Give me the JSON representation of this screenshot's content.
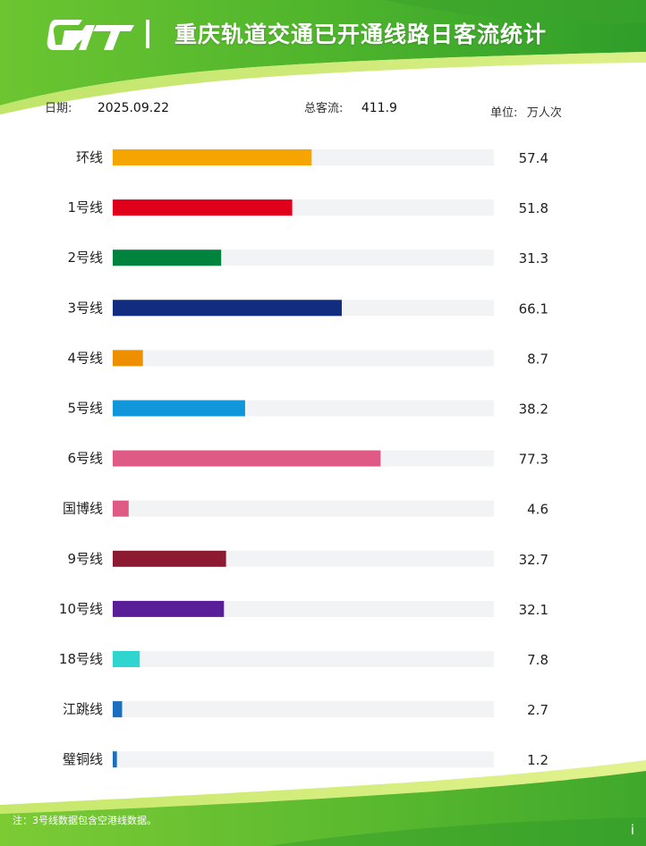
{
  "header": {
    "title": "重庆轨道交通已开通线路日客流统计",
    "logo_icon": "crt-logo-icon"
  },
  "info": {
    "date_label": "日期:",
    "date_value": "2025.09.22",
    "total_label": "总客流:",
    "total_value": "411.9",
    "unit_label": "单位:",
    "unit_value": "万人次"
  },
  "chart_data": {
    "type": "bar",
    "orientation": "horizontal",
    "categories": [
      "环线",
      "1号线",
      "2号线",
      "3号线",
      "4号线",
      "5号线",
      "6号线",
      "国博线",
      "9号线",
      "10号线",
      "18号线",
      "江跳线",
      "璧铜线"
    ],
    "values": [
      57.4,
      51.8,
      31.3,
      66.1,
      8.7,
      38.2,
      77.3,
      4.6,
      32.7,
      32.1,
      7.8,
      2.7,
      1.2
    ],
    "value_labels": [
      "57.4",
      "51.8",
      "31.3",
      "66.1",
      "8.7",
      "38.2",
      "77.3",
      "4.6",
      "32.7",
      "32.1",
      "7.8",
      "2.7",
      "1.2"
    ],
    "colors": [
      "#F6A500",
      "#E0001B",
      "#00843D",
      "#122C80",
      "#EE8F00",
      "#1296DB",
      "#E05A86",
      "#E05A86",
      "#8C1B31",
      "#5A1F98",
      "#2ED6CF",
      "#1B6FC0",
      "#1B6FC0"
    ],
    "xlim": [
      0,
      110
    ],
    "track_color": "#F1F3F5",
    "grid": false,
    "legend": "none"
  },
  "footer": {
    "note": "注：3号线数据包含空港线数据。",
    "corner_icon": "info-icon",
    "corner_symbol": "i"
  }
}
